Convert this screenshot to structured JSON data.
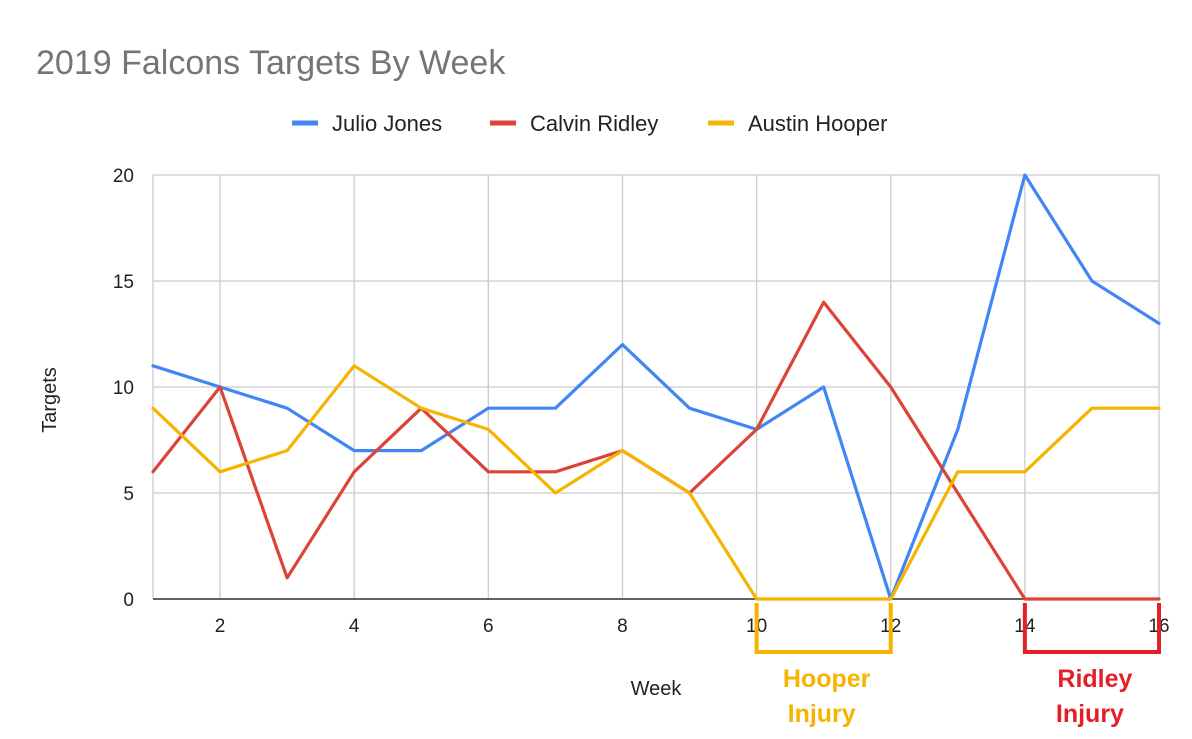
{
  "chart_data": {
    "type": "line",
    "title": "2019 Falcons Targets By Week",
    "xlabel": "Week",
    "ylabel": "Targets",
    "xlim": [
      1,
      16
    ],
    "ylim": [
      0,
      20
    ],
    "x_ticks": [
      2,
      4,
      6,
      8,
      10,
      12,
      14,
      16
    ],
    "y_ticks": [
      0,
      5,
      10,
      15,
      20
    ],
    "grid": true,
    "legend_position": "top",
    "x": [
      1,
      2,
      3,
      4,
      5,
      6,
      7,
      8,
      9,
      10,
      11,
      12,
      13,
      14,
      15,
      16
    ],
    "series": [
      {
        "name": "Julio Jones",
        "color": "#4285f4",
        "values": [
          11,
          10,
          9,
          7,
          7,
          9,
          9,
          12,
          9,
          8,
          10,
          0,
          8,
          20,
          15,
          13
        ]
      },
      {
        "name": "Calvin Ridley",
        "color": "#db4437",
        "values": [
          6,
          10,
          1,
          6,
          9,
          6,
          6,
          7,
          5,
          8,
          14,
          10,
          5,
          0,
          0,
          0
        ]
      },
      {
        "name": "Austin Hooper",
        "color": "#f4b400",
        "values": [
          9,
          6,
          7,
          11,
          9,
          8,
          5,
          7,
          5,
          0,
          0,
          0,
          6,
          6,
          9,
          9
        ]
      }
    ],
    "annotations": [
      {
        "lines": [
          "Hooper",
          "Injury"
        ],
        "from_week": 10,
        "to_week": 12,
        "color": "#f4b400"
      },
      {
        "lines": [
          "Ridley",
          "Injury"
        ],
        "from_week": 14,
        "to_week": 16,
        "color": "#e3202a"
      }
    ]
  }
}
